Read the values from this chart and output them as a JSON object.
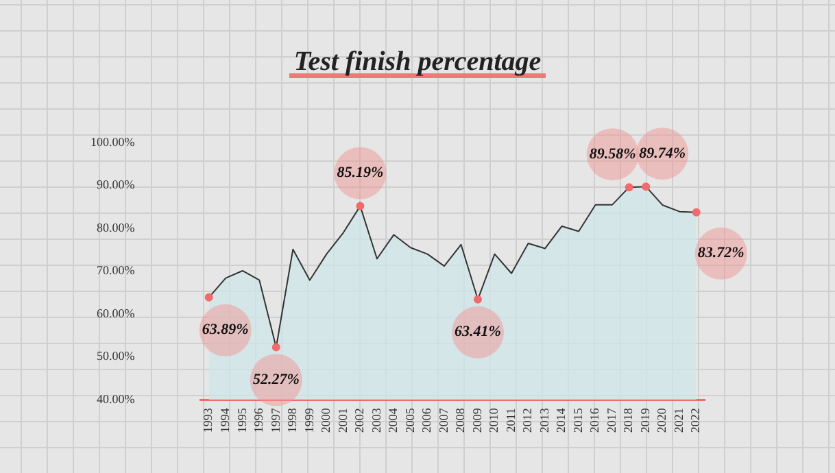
{
  "chart_data": {
    "type": "area",
    "title": "Test finish percentage",
    "categories": [
      "1993",
      "1994",
      "1995",
      "1996",
      "1997",
      "1998",
      "1999",
      "2000",
      "2001",
      "2002",
      "2003",
      "2004",
      "2005",
      "2006",
      "2007",
      "2008",
      "2009",
      "2010",
      "2011",
      "2012",
      "2013",
      "2014",
      "2015",
      "2016",
      "2017",
      "2018",
      "2019",
      "2020",
      "2021",
      "2022"
    ],
    "series": [
      {
        "color": "#333333",
        "values": [
          63.89,
          68.4,
          70.1,
          67.9,
          52.27,
          75.1,
          67.9,
          74.0,
          79.0,
          85.19,
          72.9,
          78.5,
          75.5,
          74.0,
          71.2,
          76.2,
          63.41,
          74.0,
          69.5,
          76.5,
          75.3,
          80.5,
          79.3,
          85.5,
          85.5,
          89.58,
          89.74,
          85.4,
          83.9,
          83.72
        ],
        "value_labels": [
          "63.89%",
          null,
          null,
          null,
          "52.27%",
          null,
          null,
          null,
          null,
          "85.19%",
          null,
          null,
          null,
          null,
          null,
          null,
          "63.41%",
          null,
          null,
          null,
          null,
          null,
          null,
          null,
          null,
          "89.58%",
          "89.74%",
          null,
          null,
          "83.72%"
        ]
      }
    ],
    "ylim": [
      40,
      100
    ],
    "yticks": [
      {
        "value": 40,
        "label": "40.00%"
      },
      {
        "value": 50,
        "label": "50.00%"
      },
      {
        "value": 60,
        "label": "60.00%"
      },
      {
        "value": 70,
        "label": "70.00%"
      },
      {
        "value": 80,
        "label": "80.00%"
      },
      {
        "value": 90,
        "label": "90.00%"
      },
      {
        "value": 100,
        "label": "100.00%"
      }
    ],
    "grid": false,
    "legend": false
  }
}
